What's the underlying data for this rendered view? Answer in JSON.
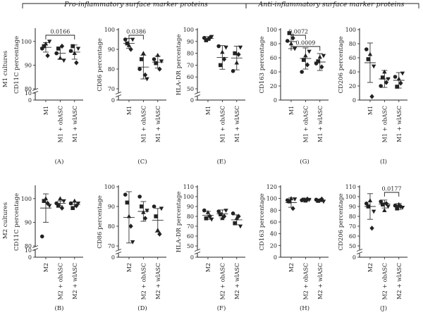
{
  "header": {
    "left": "Pro-inflammatory surface marker proteins",
    "right": "Anti-inflammatory surface marker proteins"
  },
  "rows": [
    {
      "label_line1": "M1 cultures",
      "categories": [
        "M1",
        "M1 + obASC",
        "M1 + wlASC"
      ]
    },
    {
      "label_line1": "M2 cultures",
      "categories": [
        "M2",
        "M2 + obASC",
        "M2 + wlASC"
      ]
    }
  ],
  "chart_data": [
    {
      "panel": "(A)",
      "type": "scatter",
      "ylabel": "CD11C percentage",
      "categories": [
        "M1",
        "M1 + obASC",
        "M1 + wlASC"
      ],
      "ylim": [
        0,
        105
      ],
      "yticks": [
        0,
        10,
        80,
        90,
        100
      ],
      "axis_break": [
        10,
        80
      ],
      "points": [
        [
          97,
          98,
          99,
          94,
          100
        ],
        [
          95,
          97,
          93,
          98,
          92
        ],
        [
          96,
          98,
          95,
          91,
          97
        ]
      ],
      "means": [
        97.5,
        95,
        95.5
      ],
      "sd": [
        2,
        2.5,
        3
      ],
      "significance": [
        {
          "from": 0,
          "to": 2,
          "label": "0.0166"
        }
      ]
    },
    {
      "panel": "(C)",
      "type": "scatter",
      "ylabel": "CD86 percentage",
      "categories": [
        "M1",
        "M1 + obASC",
        "M1 + wlASC"
      ],
      "ylim": [
        0,
        100
      ],
      "yticks": [
        0,
        70,
        80,
        90,
        100
      ],
      "axis_break": [
        0,
        70
      ],
      "points": [
        [
          95,
          93,
          92,
          90,
          95
        ],
        [
          80,
          85,
          88,
          77,
          75
        ],
        [
          85,
          83,
          87,
          80,
          84
        ]
      ],
      "means": [
        93,
        81,
        83.5
      ],
      "sd": [
        2.5,
        6,
        3
      ],
      "significance": [
        {
          "from": 0,
          "to": 1,
          "label": "0.0386"
        }
      ]
    },
    {
      "panel": "(E)",
      "type": "scatter",
      "ylabel": "HLA-DR percentage",
      "categories": [
        "M1",
        "M1 + obASC",
        "M1 + wlASC"
      ],
      "ylim": [
        0,
        100
      ],
      "yticks": [
        0,
        50,
        60,
        70,
        80,
        90,
        100
      ],
      "axis_break": [
        0,
        50
      ],
      "points": [
        [
          93,
          91,
          92,
          93,
          94
        ],
        [
          86,
          70,
          81,
          75,
          85
        ],
        [
          65,
          80,
          72,
          79,
          85
        ]
      ],
      "means": [
        92.5,
        76.5,
        76
      ],
      "sd": [
        1.5,
        10,
        10
      ],
      "significance": []
    },
    {
      "panel": "(G)",
      "type": "scatter",
      "ylabel": "CD163 percentage",
      "categories": [
        "M1",
        "M1 + obASC",
        "M1 + wlASC"
      ],
      "ylim": [
        0,
        100
      ],
      "yticks": [
        0,
        20,
        40,
        60,
        80,
        100
      ],
      "axis_break": null,
      "points": [
        [
          84,
          95,
          80,
          88,
          73
        ],
        [
          40,
          57,
          63,
          50,
          69
        ],
        [
          52,
          55,
          61,
          47,
          63
        ]
      ],
      "means": [
        83,
        59,
        54
      ],
      "sd": [
        10,
        15,
        12
      ],
      "significance": [
        {
          "from": 0,
          "to": 1,
          "label": "0.0072"
        },
        {
          "from": 0,
          "to": 2,
          "label": "0.0009"
        }
      ]
    },
    {
      "panel": "(I)",
      "type": "scatter",
      "ylabel": "CD206 percentage",
      "categories": [
        "M1",
        "M1 + obASC",
        "M1 + wlASC"
      ],
      "ylim": [
        0,
        100
      ],
      "yticks": [
        0,
        20,
        40,
        60,
        80,
        100
      ],
      "axis_break": null,
      "points": [
        [
          72,
          58,
          65,
          5,
          48
        ],
        [
          20,
          32,
          40,
          25,
          30
        ],
        [
          33,
          19,
          30,
          24,
          38
        ]
      ],
      "means": [
        53,
        30,
        28
      ],
      "sd": [
        28,
        12,
        11
      ],
      "significance": []
    },
    {
      "panel": "(B)",
      "type": "scatter",
      "ylabel": "CD11C percentage",
      "categories": [
        "M2",
        "M2 + obASC",
        "M2 + wlASC"
      ],
      "ylim": [
        0,
        105
      ],
      "yticks": [
        0,
        10,
        80,
        90,
        100
      ],
      "axis_break": [
        10,
        80
      ],
      "points": [
        [
          84,
          99,
          100,
          98,
          97
        ],
        [
          98,
          97,
          100,
          96,
          99
        ],
        [
          98,
          96,
          99,
          97,
          98
        ]
      ],
      "means": [
        96,
        98,
        97.5
      ],
      "sd": [
        6,
        1,
        1
      ],
      "significance": []
    },
    {
      "panel": "(D)",
      "type": "scatter",
      "ylabel": "CD86 percentage",
      "categories": [
        "M2",
        "M2 + obASC",
        "M2 + wlASC"
      ],
      "ylim": [
        0,
        100
      ],
      "yticks": [
        0,
        70,
        80,
        90,
        100
      ],
      "axis_break": [
        0,
        70
      ],
      "points": [
        [
          96,
          92,
          85,
          80,
          72
        ],
        [
          95,
          90,
          87,
          84,
          88
        ],
        [
          90,
          85,
          78,
          76,
          89
        ]
      ],
      "means": [
        84.5,
        87.5,
        83
      ],
      "sd": [
        13,
        5,
        6
      ],
      "significance": []
    },
    {
      "panel": "(F)",
      "type": "scatter",
      "ylabel": "HLA-DR percentage",
      "categories": [
        "M2",
        "M2 + obASC",
        "M2 + wlASC"
      ],
      "ylim": [
        0,
        110
      ],
      "yticks": [
        0,
        50,
        60,
        70,
        80,
        90,
        100,
        110
      ],
      "axis_break": [
        0,
        50
      ],
      "points": [
        [
          86,
          78,
          84,
          80,
          77
        ],
        [
          85,
          82,
          78,
          80,
          86
        ],
        [
          83,
          73,
          78,
          80,
          70
        ]
      ],
      "means": [
        81,
        82.5,
        76.5
      ],
      "sd": [
        4,
        4,
        5
      ],
      "significance": []
    },
    {
      "panel": "(H)",
      "type": "scatter",
      "ylabel": "CD163 percentage",
      "categories": [
        "M2",
        "M2 + obASC",
        "M2 + wlASC"
      ],
      "ylim": [
        0,
        120
      ],
      "yticks": [
        0,
        20,
        40,
        60,
        80,
        100,
        120
      ],
      "axis_break": null,
      "points": [
        [
          97,
          95,
          100,
          83,
          99
        ],
        [
          97,
          98,
          96,
          99,
          98
        ],
        [
          98,
          96,
          97,
          99,
          95
        ]
      ],
      "means": [
        93,
        97.5,
        97
      ],
      "sd": [
        8,
        2,
        2
      ],
      "significance": []
    },
    {
      "panel": "(J)",
      "type": "scatter",
      "ylabel": "CD206 percentage",
      "categories": [
        "M2",
        "M2 + obASC",
        "M2 + wlASC"
      ],
      "ylim": [
        0,
        110
      ],
      "yticks": [
        0,
        50,
        60,
        70,
        80,
        90,
        100,
        110
      ],
      "axis_break": [
        0,
        50
      ],
      "points": [
        [
          93,
          90,
          96,
          68,
          85
        ],
        [
          95,
          92,
          86,
          93,
          90
        ],
        [
          91,
          88,
          92,
          90,
          89
        ]
      ],
      "means": [
        90,
        92.5,
        90
      ],
      "sd": [
        13,
        4,
        3
      ],
      "significance": [
        {
          "from": 1,
          "to": 2,
          "label": "0.0177"
        }
      ]
    }
  ]
}
